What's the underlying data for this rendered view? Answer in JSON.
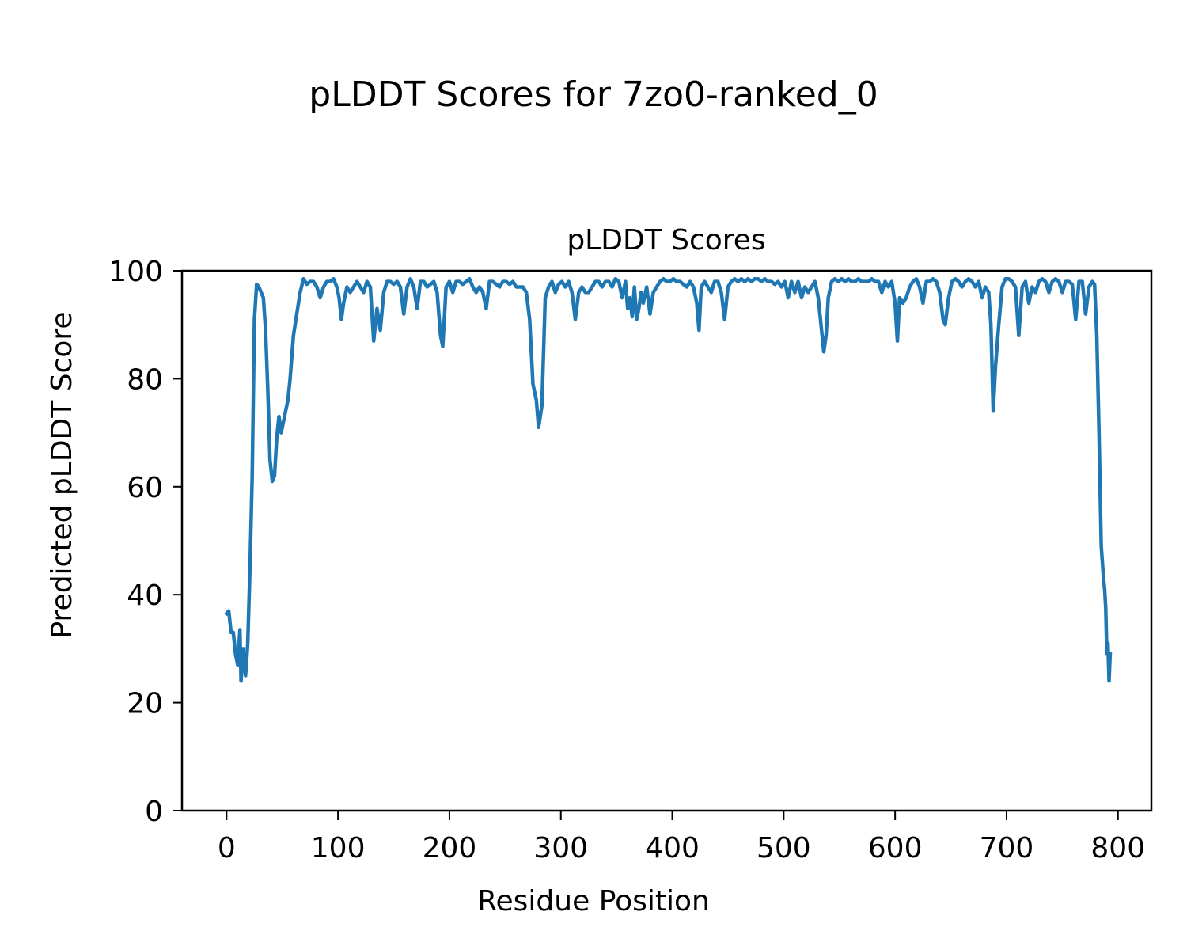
{
  "figure": {
    "suptitle": "pLDDT Scores for 7zo0-ranked_0"
  },
  "chart_data": {
    "type": "line",
    "title": "pLDDT Scores",
    "xlabel": "Residue Position",
    "ylabel": "Predicted pLDDT Score",
    "xlim": [
      -40,
      830
    ],
    "ylim": [
      0,
      100
    ],
    "xticks": [
      0,
      100,
      200,
      300,
      400,
      500,
      600,
      700,
      800
    ],
    "yticks": [
      0,
      20,
      40,
      60,
      80,
      100
    ],
    "grid": false,
    "legend": "none",
    "line_color": "#1f77b4",
    "series": [
      {
        "points": [
          [
            0,
            36.5
          ],
          [
            2,
            37
          ],
          [
            4,
            33
          ],
          [
            6,
            33
          ],
          [
            8,
            29
          ],
          [
            10,
            27
          ],
          [
            12,
            33.5
          ],
          [
            13,
            24
          ],
          [
            15,
            30
          ],
          [
            17,
            25
          ],
          [
            19,
            31
          ],
          [
            21,
            45
          ],
          [
            23,
            62
          ],
          [
            25,
            91
          ],
          [
            27,
            97.5
          ],
          [
            29,
            97
          ],
          [
            31,
            96
          ],
          [
            33,
            95
          ],
          [
            35,
            89
          ],
          [
            37,
            78
          ],
          [
            39,
            65
          ],
          [
            41,
            61
          ],
          [
            43,
            62
          ],
          [
            45,
            69
          ],
          [
            47,
            73
          ],
          [
            49,
            70
          ],
          [
            51,
            72
          ],
          [
            53,
            74
          ],
          [
            55,
            76
          ],
          [
            57,
            80
          ],
          [
            60,
            88
          ],
          [
            63,
            92
          ],
          [
            66,
            96
          ],
          [
            69,
            98.5
          ],
          [
            72,
            97.5
          ],
          [
            75,
            98
          ],
          [
            78,
            98
          ],
          [
            81,
            97
          ],
          [
            84,
            95
          ],
          [
            87,
            97
          ],
          [
            90,
            98
          ],
          [
            93,
            98
          ],
          [
            96,
            98.5
          ],
          [
            99,
            97
          ],
          [
            101,
            95
          ],
          [
            103,
            91
          ],
          [
            105,
            94
          ],
          [
            108,
            97
          ],
          [
            111,
            96
          ],
          [
            114,
            97
          ],
          [
            117,
            98
          ],
          [
            120,
            97
          ],
          [
            123,
            96
          ],
          [
            126,
            98
          ],
          [
            129,
            97
          ],
          [
            132,
            87
          ],
          [
            135,
            93
          ],
          [
            138,
            89
          ],
          [
            141,
            96
          ],
          [
            144,
            98
          ],
          [
            147,
            98
          ],
          [
            150,
            97.5
          ],
          [
            153,
            98
          ],
          [
            156,
            97
          ],
          [
            159,
            92
          ],
          [
            162,
            97
          ],
          [
            165,
            98.5
          ],
          [
            168,
            97
          ],
          [
            171,
            93
          ],
          [
            174,
            98
          ],
          [
            177,
            98
          ],
          [
            180,
            97
          ],
          [
            183,
            97.5
          ],
          [
            186,
            98
          ],
          [
            189,
            96
          ],
          [
            192,
            88
          ],
          [
            194,
            86
          ],
          [
            197,
            97
          ],
          [
            200,
            98
          ],
          [
            203,
            96
          ],
          [
            206,
            98
          ],
          [
            209,
            98
          ],
          [
            212,
            97.5
          ],
          [
            215,
            98
          ],
          [
            218,
            98.5
          ],
          [
            221,
            97
          ],
          [
            224,
            96
          ],
          [
            227,
            97
          ],
          [
            230,
            96
          ],
          [
            233,
            93
          ],
          [
            236,
            98
          ],
          [
            239,
            98
          ],
          [
            242,
            97.5
          ],
          [
            245,
            97
          ],
          [
            248,
            98
          ],
          [
            251,
            98
          ],
          [
            254,
            97.5
          ],
          [
            257,
            98
          ],
          [
            260,
            97
          ],
          [
            263,
            97
          ],
          [
            266,
            97
          ],
          [
            269,
            96
          ],
          [
            272,
            91
          ],
          [
            275,
            79
          ],
          [
            278,
            76
          ],
          [
            280,
            71
          ],
          [
            283,
            75
          ],
          [
            286,
            95
          ],
          [
            289,
            97
          ],
          [
            292,
            98
          ],
          [
            295,
            96
          ],
          [
            298,
            97.5
          ],
          [
            301,
            98
          ],
          [
            304,
            97
          ],
          [
            307,
            98
          ],
          [
            310,
            96
          ],
          [
            313,
            91
          ],
          [
            316,
            96
          ],
          [
            319,
            97
          ],
          [
            322,
            96
          ],
          [
            325,
            96
          ],
          [
            328,
            97
          ],
          [
            331,
            98
          ],
          [
            334,
            98
          ],
          [
            337,
            97
          ],
          [
            340,
            98
          ],
          [
            343,
            98
          ],
          [
            346,
            97
          ],
          [
            349,
            98.5
          ],
          [
            352,
            98
          ],
          [
            355,
            95
          ],
          [
            358,
            98
          ],
          [
            360,
            93
          ],
          [
            362,
            95
          ],
          [
            364,
            91.5
          ],
          [
            366,
            97
          ],
          [
            368,
            91
          ],
          [
            370,
            93
          ],
          [
            372,
            96
          ],
          [
            374,
            94
          ],
          [
            377,
            97
          ],
          [
            380,
            92
          ],
          [
            383,
            96
          ],
          [
            386,
            97
          ],
          [
            389,
            98
          ],
          [
            392,
            98.5
          ],
          [
            395,
            98
          ],
          [
            398,
            98
          ],
          [
            401,
            98.5
          ],
          [
            404,
            98
          ],
          [
            407,
            98
          ],
          [
            410,
            97.5
          ],
          [
            413,
            97
          ],
          [
            416,
            98
          ],
          [
            419,
            97
          ],
          [
            422,
            94
          ],
          [
            424,
            89
          ],
          [
            426,
            97
          ],
          [
            429,
            98
          ],
          [
            432,
            97
          ],
          [
            435,
            96
          ],
          [
            438,
            98
          ],
          [
            441,
            98
          ],
          [
            444,
            96
          ],
          [
            447,
            91
          ],
          [
            450,
            97
          ],
          [
            453,
            98
          ],
          [
            456,
            98.5
          ],
          [
            459,
            98
          ],
          [
            462,
            98.5
          ],
          [
            465,
            98
          ],
          [
            468,
            98.5
          ],
          [
            471,
            98
          ],
          [
            474,
            98.5
          ],
          [
            477,
            98.5
          ],
          [
            480,
            98
          ],
          [
            483,
            98.5
          ],
          [
            486,
            98
          ],
          [
            489,
            98
          ],
          [
            492,
            97.5
          ],
          [
            495,
            98
          ],
          [
            498,
            97
          ],
          [
            501,
            98
          ],
          [
            504,
            95
          ],
          [
            507,
            98
          ],
          [
            510,
            96
          ],
          [
            513,
            98
          ],
          [
            516,
            95
          ],
          [
            519,
            97
          ],
          [
            522,
            96
          ],
          [
            525,
            97
          ],
          [
            528,
            98
          ],
          [
            531,
            95
          ],
          [
            534,
            89
          ],
          [
            536,
            85
          ],
          [
            538,
            88
          ],
          [
            540,
            95
          ],
          [
            543,
            98
          ],
          [
            546,
            98.5
          ],
          [
            549,
            98
          ],
          [
            552,
            98.5
          ],
          [
            555,
            98
          ],
          [
            558,
            98.5
          ],
          [
            561,
            98
          ],
          [
            564,
            98
          ],
          [
            567,
            98.5
          ],
          [
            570,
            98
          ],
          [
            573,
            98
          ],
          [
            576,
            98
          ],
          [
            579,
            98.5
          ],
          [
            582,
            98
          ],
          [
            585,
            98
          ],
          [
            588,
            96
          ],
          [
            591,
            98
          ],
          [
            594,
            97
          ],
          [
            597,
            98
          ],
          [
            600,
            94
          ],
          [
            602,
            87
          ],
          [
            604,
            95
          ],
          [
            607,
            94
          ],
          [
            610,
            95
          ],
          [
            613,
            97
          ],
          [
            616,
            98
          ],
          [
            619,
            98.5
          ],
          [
            622,
            97
          ],
          [
            625,
            94
          ],
          [
            628,
            98
          ],
          [
            631,
            98
          ],
          [
            634,
            98.5
          ],
          [
            637,
            98
          ],
          [
            640,
            96
          ],
          [
            643,
            91
          ],
          [
            645,
            90
          ],
          [
            648,
            95
          ],
          [
            651,
            98
          ],
          [
            654,
            98.5
          ],
          [
            657,
            98
          ],
          [
            660,
            97
          ],
          [
            663,
            98
          ],
          [
            666,
            98.5
          ],
          [
            669,
            98
          ],
          [
            672,
            97
          ],
          [
            675,
            98
          ],
          [
            678,
            95
          ],
          [
            681,
            97
          ],
          [
            684,
            96
          ],
          [
            686,
            90
          ],
          [
            688,
            74
          ],
          [
            690,
            82
          ],
          [
            693,
            90
          ],
          [
            696,
            97
          ],
          [
            699,
            98.5
          ],
          [
            702,
            98.5
          ],
          [
            705,
            98
          ],
          [
            708,
            97
          ],
          [
            711,
            88
          ],
          [
            714,
            97
          ],
          [
            717,
            98
          ],
          [
            720,
            94
          ],
          [
            723,
            97
          ],
          [
            726,
            96
          ],
          [
            729,
            98
          ],
          [
            732,
            98.5
          ],
          [
            735,
            98
          ],
          [
            738,
            96
          ],
          [
            741,
            98
          ],
          [
            744,
            98.5
          ],
          [
            747,
            98
          ],
          [
            750,
            96
          ],
          [
            753,
            98
          ],
          [
            756,
            98
          ],
          [
            759,
            97.5
          ],
          [
            762,
            91
          ],
          [
            765,
            98
          ],
          [
            768,
            98
          ],
          [
            771,
            92
          ],
          [
            774,
            97
          ],
          [
            777,
            98
          ],
          [
            779,
            97.5
          ],
          [
            781,
            88
          ],
          [
            783,
            70
          ],
          [
            785,
            49
          ],
          [
            787,
            43
          ],
          [
            788,
            41
          ],
          [
            789,
            37.5
          ],
          [
            790,
            29
          ],
          [
            791,
            31
          ],
          [
            792,
            24
          ],
          [
            793,
            29
          ]
        ]
      }
    ]
  }
}
